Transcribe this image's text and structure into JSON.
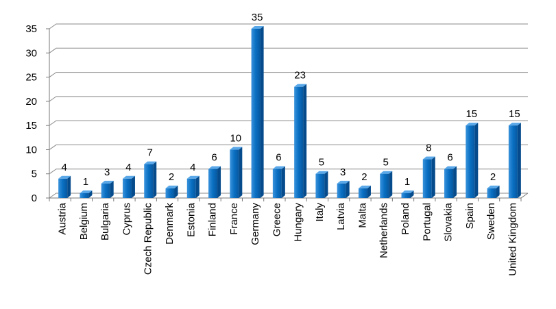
{
  "chart_data": {
    "type": "bar",
    "categories": [
      "Austria",
      "Belgium",
      "Bulgaria",
      "Cyprus",
      "Czech Republic",
      "Denmark",
      "Estonia",
      "Finland",
      "France",
      "Germany",
      "Greece",
      "Hungary",
      "Italy",
      "Latvia",
      "Malta",
      "Netherlands",
      "Poland",
      "Portugal",
      "Slovakia",
      "Spain",
      "Sweden",
      "United Kingdom"
    ],
    "values": [
      4,
      1,
      3,
      4,
      7,
      2,
      4,
      6,
      10,
      35,
      6,
      23,
      5,
      3,
      2,
      5,
      1,
      8,
      6,
      15,
      2,
      15
    ],
    "color": "#0a6fc2",
    "ylim": [
      0,
      35
    ],
    "yticks": [
      0,
      5,
      10,
      15,
      20,
      25,
      30,
      35
    ],
    "grid": true
  }
}
